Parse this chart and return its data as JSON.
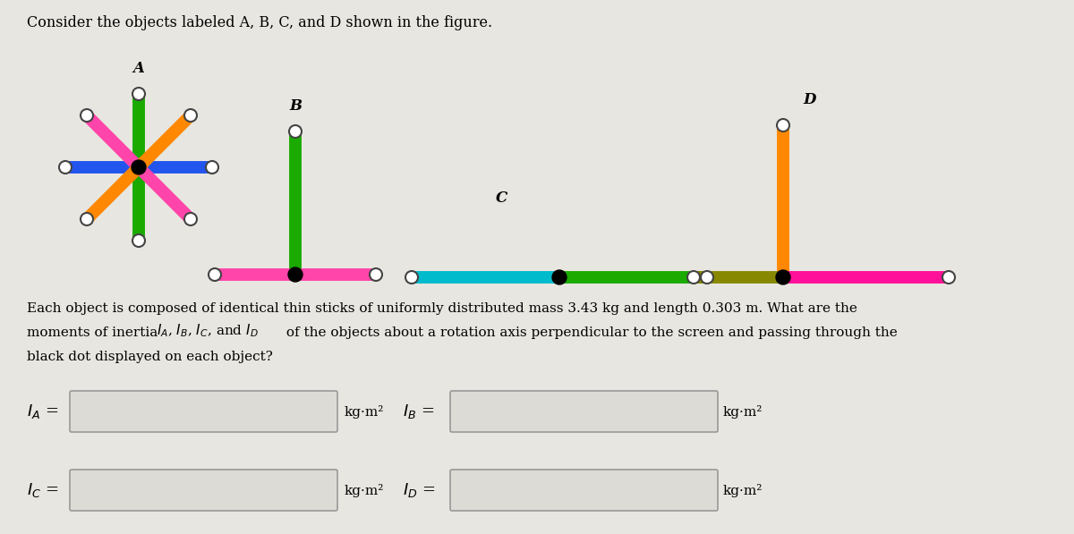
{
  "bg_color": "#e8e6e0",
  "white_bg": "#f0eeea",
  "title_text": "Consider the objects labeled A, B, C, and D shown in the figure.",
  "label_A": "A",
  "label_B": "B",
  "label_C": "C",
  "label_D": "D",
  "color_green": "#1aaa00",
  "color_blue": "#2255ee",
  "color_pink": "#ff44aa",
  "color_orange": "#ff8800",
  "color_cyan": "#00bbcc",
  "color_olive": "#888800",
  "color_magenta": "#ff1199",
  "body_line1": "Each object is composed of identical thin sticks of uniformly distributed mass 3.43 kg and length 0.303 m. What are the",
  "body_line2": "moments of inertia                                   of the objects about a rotation axis perpendicular to the screen and passing through the",
  "body_line3": "black dot displayed on each object?"
}
